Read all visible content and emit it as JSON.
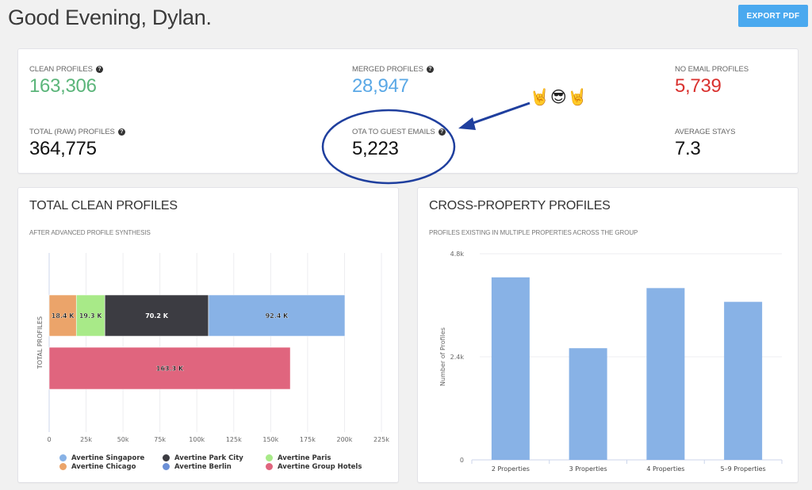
{
  "header": {
    "greeting": "Good Evening, Dylan.",
    "export_label": "EXPORT PDF"
  },
  "stats": [
    {
      "id": "clean",
      "label": "CLEAN PROFILES",
      "value": "163,306",
      "color": "#5bb57a",
      "help": true
    },
    {
      "id": "merged",
      "label": "MERGED PROFILES",
      "value": "28,947",
      "color": "#5aa8e6",
      "help": true
    },
    {
      "id": "no-email",
      "label": "NO EMAIL PROFILES",
      "value": "5,739",
      "color": "#d9322f",
      "help": false
    },
    {
      "id": "raw",
      "label": "TOTAL (RAW) PROFILES",
      "value": "364,775",
      "color": "#111111",
      "help": true
    },
    {
      "id": "ota",
      "label": "OTA TO GUEST EMAILS",
      "value": "5,223",
      "color": "#111111",
      "help": true
    },
    {
      "id": "avg-stays",
      "label": "AVERAGE STAYS",
      "value": "7.3",
      "color": "#111111",
      "help": false
    }
  ],
  "help_glyph": "?",
  "annotation": {
    "emoji": "🤘😎🤘",
    "color": "#1f3f9e"
  },
  "left_card": {
    "title": "TOTAL CLEAN PROFILES",
    "subtitle": "AFTER ADVANCED PROFILE SYNTHESIS"
  },
  "right_card": {
    "title": "CROSS-PROPERTY PROFILES",
    "subtitle": "PROFILES EXISTING IN MULTIPLE PROPERTIES ACROSS THE GROUP"
  },
  "chart_data": [
    {
      "type": "bar",
      "orientation": "horizontal",
      "stacked": true,
      "title": "TOTAL CLEAN PROFILES",
      "subtitle": "AFTER ADVANCED PROFILE SYNTHESIS",
      "ylabel": "TOTAL PROFILES",
      "xlabel": "",
      "xlim": [
        0,
        225000
      ],
      "xticks": [
        0,
        25000,
        50000,
        75000,
        100000,
        125000,
        150000,
        175000,
        200000,
        225000
      ],
      "xtick_labels": [
        "0",
        "25k",
        "50k",
        "75k",
        "100k",
        "125k",
        "150k",
        "175k",
        "200k",
        "225k"
      ],
      "grid": true,
      "legend_position": "bottom",
      "bars": [
        {
          "row": 0,
          "segments": [
            {
              "series": "Avertine Chicago",
              "value": 18400,
              "label": "18.4 K",
              "color": "#eba46a"
            },
            {
              "series": "Avertine Paris",
              "value": 19300,
              "label": "19.3 K",
              "color": "#a8ea88"
            },
            {
              "series": "Avertine Park City",
              "value": 70200,
              "label": "70.2 K",
              "color": "#3c3c42"
            },
            {
              "series": "Avertine Singapore",
              "value": 92400,
              "label": "92.4 K",
              "color": "#88b2e6"
            }
          ]
        },
        {
          "row": 1,
          "segments": [
            {
              "series": "Avertine Group Hotels",
              "value": 163300,
              "label": "163.3 K",
              "color": "#e0657e"
            }
          ]
        }
      ],
      "legend": [
        {
          "name": "Avertine Singapore",
          "color": "#88b2e6"
        },
        {
          "name": "Avertine Park City",
          "color": "#3c3c42"
        },
        {
          "name": "Avertine Paris",
          "color": "#a8ea88"
        },
        {
          "name": "Avertine Chicago",
          "color": "#eba46a"
        },
        {
          "name": "Avertine Berlin",
          "color": "#6b8fd6"
        },
        {
          "name": "Avertine Group Hotels",
          "color": "#e0657e"
        }
      ]
    },
    {
      "type": "bar",
      "orientation": "vertical",
      "title": "CROSS-PROPERTY PROFILES",
      "subtitle": "PROFILES EXISTING IN MULTIPLE PROPERTIES ACROSS THE GROUP",
      "xlabel": "",
      "ylabel": "Number of Profiles",
      "ylim": [
        0,
        4800
      ],
      "yticks": [
        0,
        2400,
        4800
      ],
      "ytick_labels": [
        "0",
        "2.4k",
        "4.8k"
      ],
      "grid": true,
      "categories": [
        "2 Properties",
        "3 Properties",
        "4 Properties",
        "5–9 Properties"
      ],
      "values": [
        4250,
        2600,
        4000,
        3680
      ],
      "color": "#88b2e6"
    }
  ]
}
